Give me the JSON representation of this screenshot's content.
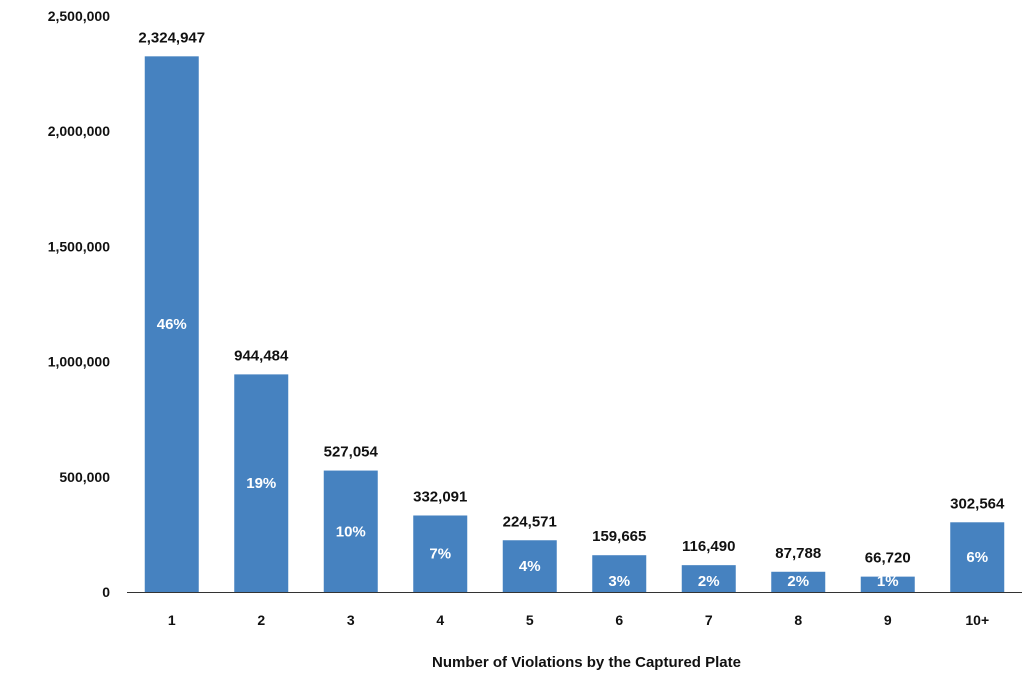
{
  "chart_data": {
    "type": "bar",
    "title": "",
    "xlabel": "Number of Violations by the Captured Plate",
    "ylabel": "",
    "categories": [
      "1",
      "2",
      "3",
      "4",
      "5",
      "6",
      "7",
      "8",
      "9",
      "10+"
    ],
    "values": [
      2324947,
      944484,
      527054,
      332091,
      224571,
      159665,
      116490,
      87788,
      66720,
      302564
    ],
    "value_labels": [
      "2,324,947",
      "944,484",
      "527,054",
      "332,091",
      "224,571",
      "159,665",
      "116,490",
      "87,788",
      "66,720",
      "302,564"
    ],
    "percent_labels": [
      "46%",
      "19%",
      "10%",
      "7%",
      "4%",
      "3%",
      "2%",
      "2%",
      "1%",
      "6%"
    ],
    "ylim": [
      0,
      2500000
    ],
    "yticks": [
      0,
      500000,
      1000000,
      1500000,
      2000000,
      2500000
    ],
    "ytick_labels": [
      "0",
      "500,000",
      "1,000,000",
      "1,500,000",
      "2,000,000",
      "2,500,000"
    ],
    "grid": false,
    "legend": "none",
    "bar_color": "#4682c0"
  }
}
